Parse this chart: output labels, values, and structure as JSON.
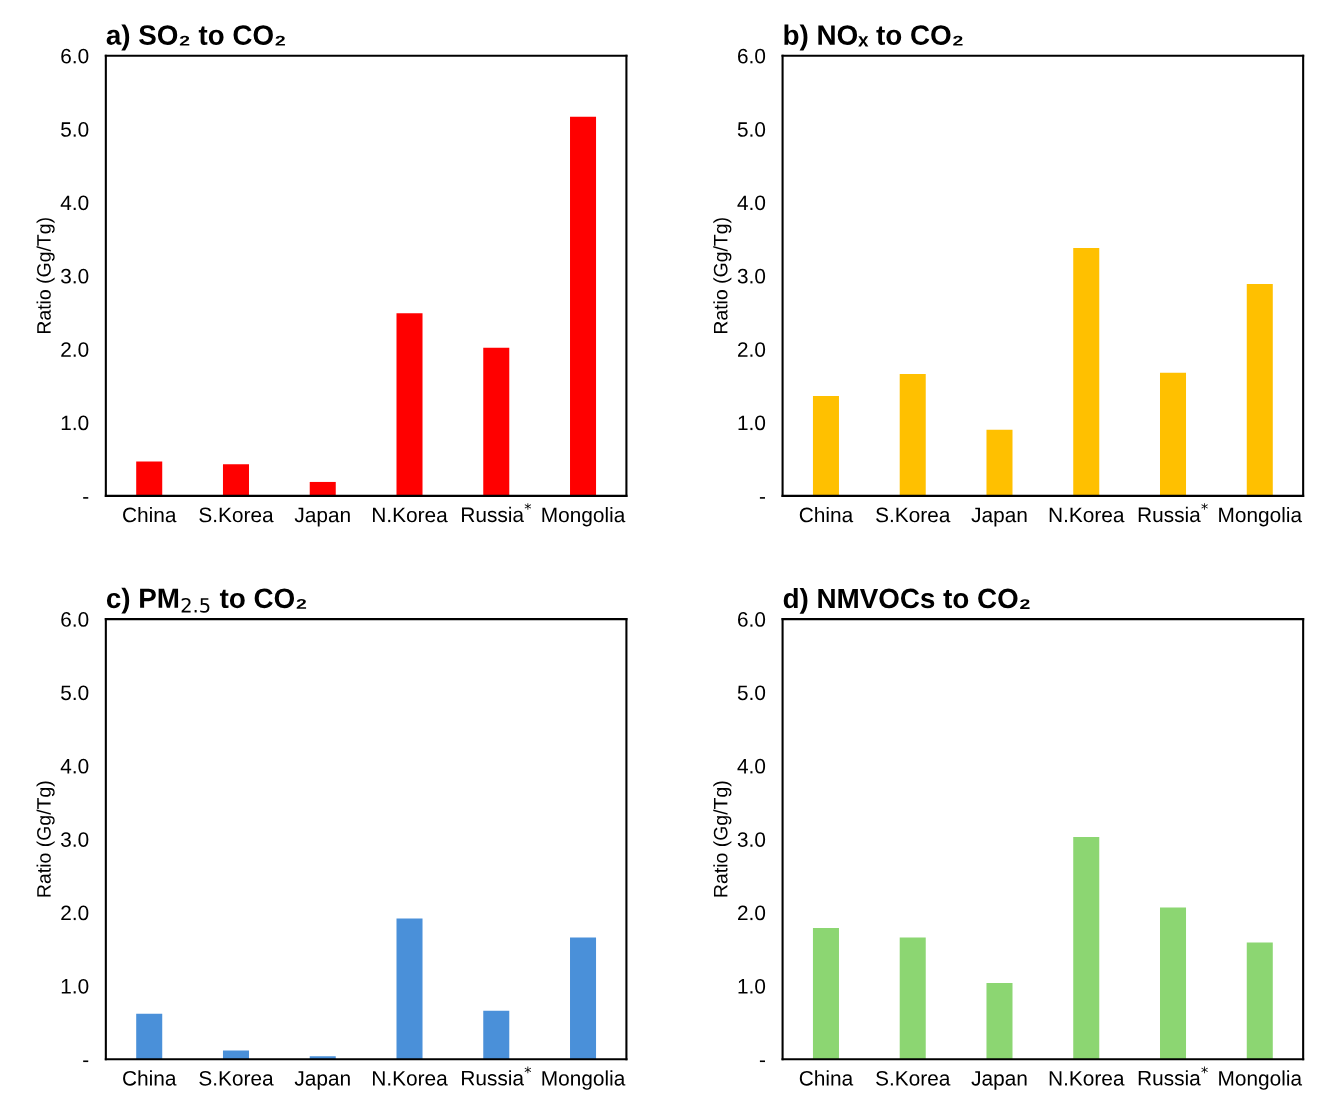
{
  "chart_data": [
    {
      "type": "bar",
      "title": "a) SO₂ to CO₂",
      "ylabel": "Ratio (Gg/Tg)",
      "categories": [
        "China",
        "S.Korea",
        "Japan",
        "N.Korea",
        "Russia$^{*}$",
        "Mongolia"
      ],
      "values": [
        0.47,
        0.43,
        0.19,
        2.49,
        2.02,
        5.17
      ],
      "color": "#ff0000",
      "ylim": [
        0,
        6
      ],
      "yticks": [
        {
          "value": 0,
          "label": "-"
        },
        {
          "value": 1,
          "label": "1.0"
        },
        {
          "value": 2,
          "label": "2.0"
        },
        {
          "value": 3,
          "label": "3.0"
        },
        {
          "value": 4,
          "label": "4.0"
        },
        {
          "value": 5,
          "label": "5.0"
        },
        {
          "value": 6,
          "label": "6.0"
        }
      ],
      "grid": false,
      "legend": false
    },
    {
      "type": "bar",
      "title": "b) NOₓ to CO₂",
      "ylabel": "Ratio (Gg/Tg)",
      "categories": [
        "China",
        "S.Korea",
        "Japan",
        "N.Korea",
        "Russia$^{*}$",
        "Mongolia"
      ],
      "values": [
        1.36,
        1.66,
        0.9,
        3.38,
        1.68,
        2.89
      ],
      "color": "#ffc000",
      "ylim": [
        0,
        6
      ],
      "yticks": [
        {
          "value": 0,
          "label": "-"
        },
        {
          "value": 1,
          "label": "1.0"
        },
        {
          "value": 2,
          "label": "2.0"
        },
        {
          "value": 3,
          "label": "3.0"
        },
        {
          "value": 4,
          "label": "4.0"
        },
        {
          "value": 5,
          "label": "5.0"
        },
        {
          "value": 6,
          "label": "6.0"
        }
      ],
      "grid": false,
      "legend": false
    },
    {
      "type": "bar",
      "title": "c) PM$_{2.5}$ to CO₂",
      "ylabel": "Ratio (Gg/Tg)",
      "categories": [
        "China",
        "S.Korea",
        "Japan",
        "N.Korea",
        "Russia$^{*}$",
        "Mongolia"
      ],
      "values": [
        0.62,
        0.12,
        0.04,
        1.92,
        0.66,
        1.66
      ],
      "color": "#4a90d9",
      "ylim": [
        0,
        6
      ],
      "yticks": [
        {
          "value": 0,
          "label": "-"
        },
        {
          "value": 1,
          "label": "1.0"
        },
        {
          "value": 2,
          "label": "2.0"
        },
        {
          "value": 3,
          "label": "3.0"
        },
        {
          "value": 4,
          "label": "4.0"
        },
        {
          "value": 5,
          "label": "5.0"
        },
        {
          "value": 6,
          "label": "6.0"
        }
      ],
      "grid": false,
      "legend": false
    },
    {
      "type": "bar",
      "title": "d) NMVOCs to CO₂",
      "ylabel": "Ratio (Gg/Tg)",
      "categories": [
        "China",
        "S.Korea",
        "Japan",
        "N.Korea",
        "Russia$^{*}$",
        "Mongolia"
      ],
      "values": [
        1.79,
        1.66,
        1.04,
        3.03,
        2.07,
        1.59
      ],
      "color": "#8cd672",
      "ylim": [
        0,
        6
      ],
      "yticks": [
        {
          "value": 0,
          "label": "-"
        },
        {
          "value": 1,
          "label": "1.0"
        },
        {
          "value": 2,
          "label": "2.0"
        },
        {
          "value": 3,
          "label": "3.0"
        },
        {
          "value": 4,
          "label": "4.0"
        },
        {
          "value": 5,
          "label": "5.0"
        },
        {
          "value": 6,
          "label": "6.0"
        }
      ],
      "grid": false,
      "legend": false
    }
  ]
}
